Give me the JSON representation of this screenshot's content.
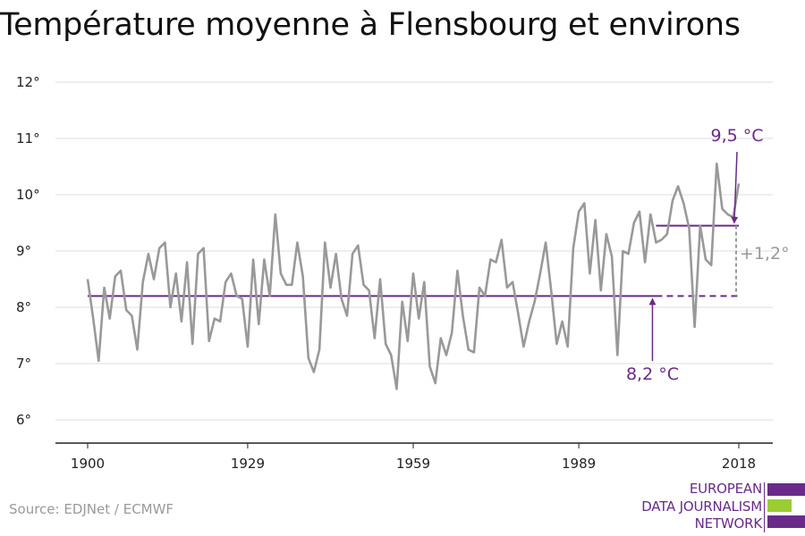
{
  "title": "Température moyenne à Flensbourg et environs",
  "source": "Source: EDJNet / ECMWF",
  "logo": {
    "lines": [
      "EUROPEAN",
      "DATA JOURNALISM",
      "NETWORK"
    ],
    "colors": {
      "purple": "#6a2a8a",
      "green": "#9acd32"
    }
  },
  "colors": {
    "series": "#999999",
    "reference": "#6a2a8a",
    "delta": "#999999",
    "grid": "#dddddd",
    "axis": "#222222"
  },
  "chart_data": {
    "type": "line",
    "title": "Température moyenne à Flensbourg et environs",
    "xlabel": "",
    "ylabel": "",
    "xlim": [
      1900,
      2018
    ],
    "ylim": [
      6,
      12
    ],
    "x_ticks": [
      1900,
      1929,
      1959,
      1989,
      2018
    ],
    "y_ticks": [
      6,
      7,
      8,
      9,
      10,
      11,
      12
    ],
    "y_tick_labels": [
      "6°",
      "7°",
      "8°",
      "9°",
      "10°",
      "11°",
      "12°"
    ],
    "grid": true,
    "series": [
      {
        "x": [
          1900,
          1901,
          1902,
          1903,
          1904,
          1905,
          1906,
          1907,
          1908,
          1909,
          1910,
          1911,
          1912,
          1913,
          1914,
          1915,
          1916,
          1917,
          1918,
          1919,
          1920,
          1921,
          1922,
          1923,
          1924,
          1925,
          1926,
          1927,
          1928,
          1929,
          1930,
          1931,
          1932,
          1933,
          1934,
          1935,
          1936,
          1937,
          1938,
          1939,
          1940,
          1941,
          1942,
          1943,
          1944,
          1945,
          1946,
          1947,
          1948,
          1949,
          1950,
          1951,
          1952,
          1953,
          1954,
          1955,
          1956,
          1957,
          1958,
          1959,
          1960,
          1961,
          1962,
          1963,
          1964,
          1965,
          1966,
          1967,
          1968,
          1969,
          1970,
          1971,
          1972,
          1973,
          1974,
          1975,
          1976,
          1977,
          1978,
          1979,
          1980,
          1981,
          1982,
          1983,
          1984,
          1985,
          1986,
          1987,
          1988,
          1989,
          1990,
          1991,
          1992,
          1993,
          1994,
          1995,
          1996,
          1997,
          1998,
          1999,
          2000,
          2001,
          2002,
          2003,
          2004,
          2005,
          2006,
          2007,
          2008,
          2009,
          2010,
          2011,
          2012,
          2013,
          2014,
          2015,
          2016,
          2017,
          2018
        ],
        "values": [
          8.5,
          7.8,
          7.05,
          8.35,
          7.8,
          8.55,
          8.65,
          7.95,
          7.85,
          7.25,
          8.45,
          8.95,
          8.5,
          9.05,
          9.15,
          8.0,
          8.6,
          7.75,
          8.8,
          7.35,
          8.95,
          9.05,
          7.4,
          7.8,
          7.75,
          8.45,
          8.6,
          8.2,
          8.15,
          7.3,
          8.85,
          7.7,
          8.85,
          8.2,
          9.65,
          8.6,
          8.4,
          8.4,
          9.15,
          8.55,
          7.1,
          6.85,
          7.25,
          9.15,
          8.35,
          8.95,
          8.15,
          7.85,
          8.95,
          9.1,
          8.4,
          8.3,
          7.45,
          8.5,
          7.35,
          7.15,
          6.55,
          8.1,
          7.4,
          8.6,
          7.8,
          8.45,
          6.95,
          6.65,
          7.45,
          7.15,
          7.55,
          8.65,
          7.85,
          7.25,
          7.2,
          8.35,
          8.2,
          8.85,
          8.8,
          9.2,
          8.35,
          8.45,
          7.9,
          7.3,
          7.75,
          8.1,
          8.6,
          9.15,
          8.3,
          7.35,
          7.75,
          7.3,
          9.05,
          9.7,
          9.85,
          8.6,
          9.55,
          8.3,
          9.3,
          8.9,
          7.15,
          9.0,
          8.95,
          9.5,
          9.7,
          8.8,
          9.65,
          9.15,
          9.2,
          9.3,
          9.9,
          10.15,
          9.85,
          9.4,
          7.65,
          9.45,
          8.85,
          8.75,
          10.55,
          9.75,
          9.65,
          9.6,
          10.2
        ]
      }
    ],
    "reference_lines": [
      {
        "label": "8,2 °C",
        "value": 8.2,
        "x_start": 1900,
        "x_end": 2018,
        "dashed_from": 2003
      },
      {
        "label": "9,5 °C",
        "value": 9.45,
        "x_start": 2003,
        "x_end": 2018
      }
    ],
    "difference_label": "+1,2°"
  }
}
